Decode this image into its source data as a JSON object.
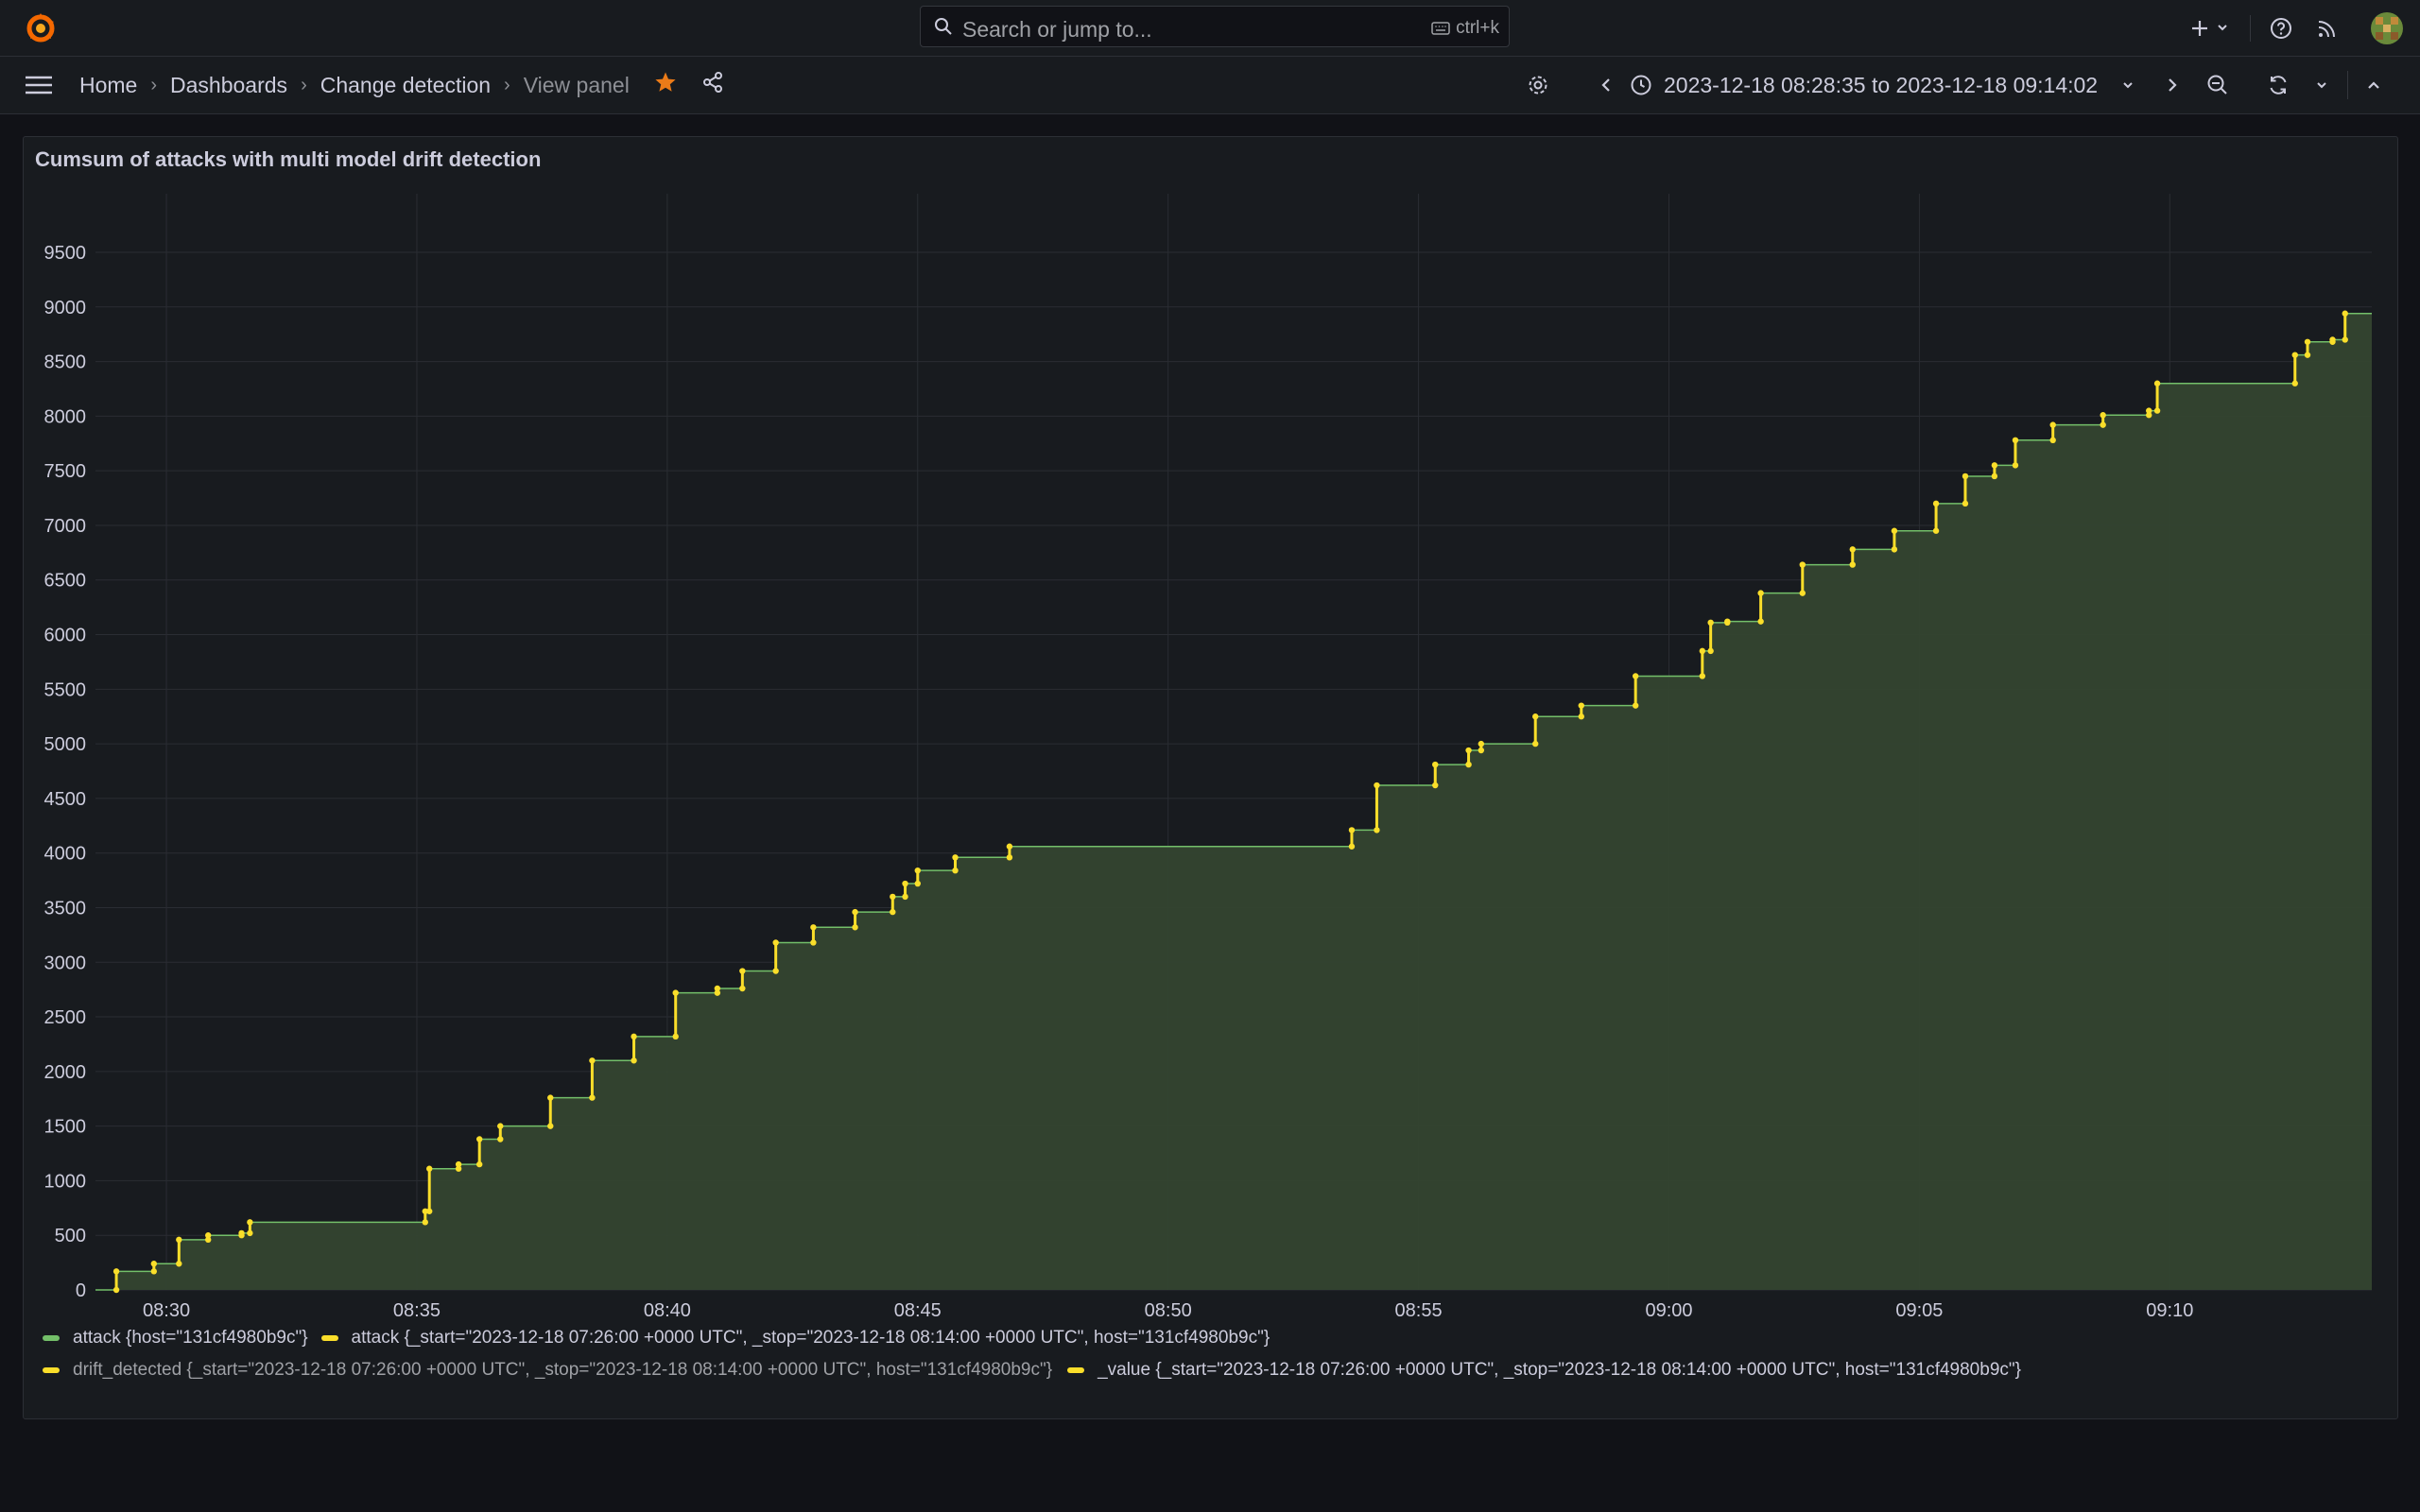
{
  "search": {
    "placeholder": "Search or jump to...",
    "shortcut": "ctrl+k"
  },
  "breadcrumbs": [
    {
      "label": "Home"
    },
    {
      "label": "Dashboards"
    },
    {
      "label": "Change detection"
    },
    {
      "label": "View panel"
    }
  ],
  "time_range": "2023-12-18 08:28:35 to 2023-12-18 09:14:02",
  "panel": {
    "title": "Cumsum of attacks with multi model drift detection"
  },
  "colors": {
    "area_fill": "#344530",
    "line": "#73bf69",
    "points": "#fade2a",
    "accent_star": "#eb7b18"
  },
  "chart_data": {
    "type": "area",
    "title": "Cumsum of attacks with multi model drift detection",
    "xlabel": "",
    "ylabel": "",
    "x_ticks": [
      "08:30",
      "08:35",
      "08:40",
      "08:45",
      "08:50",
      "08:55",
      "09:00",
      "09:05",
      "09:10"
    ],
    "y_ticks": [
      0,
      500,
      1000,
      1500,
      2000,
      2500,
      3000,
      3500,
      4000,
      4500,
      5000,
      5500,
      6000,
      6500,
      7000,
      7500,
      8000,
      8500,
      9000,
      9500
    ],
    "xlim": [
      "08:28:35",
      "09:14:02"
    ],
    "ylim": [
      0,
      9500
    ],
    "grid": true,
    "legend_position": "bottom",
    "series": [
      {
        "name": "attack {host=\"131cf4980b9c\"}",
        "color": "#73bf69",
        "style": "stepped area",
        "x": [
          "08:28:35",
          "08:29:00",
          "08:29:45",
          "08:30:15",
          "08:30:50",
          "08:31:30",
          "08:31:40",
          "08:35:10",
          "08:35:15",
          "08:35:50",
          "08:36:15",
          "08:36:40",
          "08:37:40",
          "08:38:30",
          "08:39:20",
          "08:40:10",
          "08:41:00",
          "08:41:30",
          "08:42:10",
          "08:42:55",
          "08:43:45",
          "08:44:30",
          "08:44:45",
          "08:45:00",
          "08:45:45",
          "08:46:50",
          "08:47:30",
          "08:53:40",
          "08:54:10",
          "08:55:20",
          "08:56:00",
          "08:56:15",
          "08:57:20",
          "08:58:15",
          "08:59:20",
          "09:00:40",
          "09:00:50",
          "09:01:10",
          "09:01:50",
          "09:02:40",
          "09:03:40",
          "09:04:30",
          "09:05:20",
          "09:05:55",
          "09:06:30",
          "09:06:55",
          "09:07:40",
          "09:08:40",
          "09:09:35",
          "09:09:45",
          "09:12:30",
          "09:12:45",
          "09:13:15",
          "09:13:30",
          "09:14:02"
        ],
        "y": [
          0,
          170,
          240,
          460,
          500,
          520,
          620,
          720,
          1110,
          1150,
          1380,
          1500,
          1760,
          2100,
          2320,
          2720,
          2760,
          2920,
          3180,
          3320,
          3460,
          3600,
          3720,
          3840,
          3960,
          4060,
          4060,
          4210,
          4620,
          4810,
          4940,
          5000,
          5250,
          5350,
          5620,
          5850,
          6110,
          6120,
          6380,
          6640,
          6780,
          6950,
          7200,
          7450,
          7550,
          7780,
          7920,
          8010,
          8050,
          8300,
          8560,
          8680,
          8700,
          8940,
          8940
        ]
      },
      {
        "name": "attack {_start=\"2023-12-18 07:26:00 +0000 UTC\", _stop=\"2023-12-18 08:14:00 +0000 UTC\", host=\"131cf4980b9c\"}",
        "color": "#fade2a",
        "style": "points"
      },
      {
        "name": "drift_detected {_start=\"2023-12-18 07:26:00 +0000 UTC\", _stop=\"2023-12-18 08:14:00 +0000 UTC\", host=\"131cf4980b9c\"}",
        "color": "#fade2a",
        "style": "points",
        "hidden": true
      },
      {
        "name": "_value {_start=\"2023-12-18 07:26:00 +0000 UTC\", _stop=\"2023-12-18 08:14:00 +0000 UTC\", host=\"131cf4980b9c\"}",
        "color": "#fade2a",
        "style": "points"
      }
    ]
  }
}
